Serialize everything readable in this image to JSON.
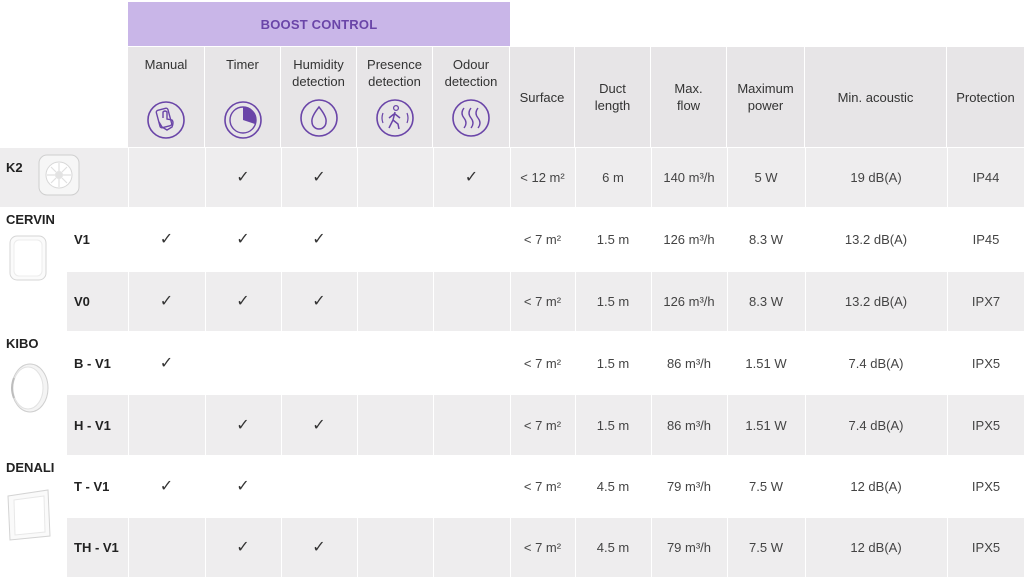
{
  "table": {
    "group_header": "BOOST CONTROL",
    "headers": {
      "manual": "Manual",
      "timer": "Timer",
      "humidity": "Humidity detection",
      "presence": "Presence detection",
      "odour": "Odour detection",
      "surface": "Surface",
      "duct": "Duct length",
      "flow": "Max. flow",
      "power": "Maximum power",
      "acoustic": "Min. acoustic",
      "protection": "Protection"
    },
    "check_mark": "✓",
    "rows": [
      {
        "brand": "K2",
        "variant": "",
        "manual": "",
        "timer": "✓",
        "humidity": "✓",
        "presence": "",
        "odour": "✓",
        "surface": "< 12 m²",
        "duct": "6 m",
        "flow": "140 m³/h",
        "power": "5 W",
        "acoustic": "19 dB(A)",
        "protection": "IP44"
      },
      {
        "brand": "CERVIN",
        "variant": "V1",
        "manual": "✓",
        "timer": "✓",
        "humidity": "✓",
        "presence": "",
        "odour": "",
        "surface": "< 7 m²",
        "duct": "1.5 m",
        "flow": "126 m³/h",
        "power": "8.3 W",
        "acoustic": "13.2 dB(A)",
        "protection": "IP45"
      },
      {
        "brand": "",
        "variant": "V0",
        "manual": "✓",
        "timer": "✓",
        "humidity": "✓",
        "presence": "",
        "odour": "",
        "surface": "< 7 m²",
        "duct": "1.5 m",
        "flow": "126 m³/h",
        "power": "8.3 W",
        "acoustic": "13.2 dB(A)",
        "protection": "IPX7"
      },
      {
        "brand": "KIBO",
        "variant": "B - V1",
        "manual": "✓",
        "timer": "",
        "humidity": "",
        "presence": "",
        "odour": "",
        "surface": "< 7 m²",
        "duct": "1.5 m",
        "flow": "86 m³/h",
        "power": "1.51 W",
        "acoustic": "7.4 dB(A)",
        "protection": "IPX5"
      },
      {
        "brand": "",
        "variant": "H - V1",
        "manual": "",
        "timer": "✓",
        "humidity": "✓",
        "presence": "",
        "odour": "",
        "surface": "< 7 m²",
        "duct": "1.5 m",
        "flow": "86 m³/h",
        "power": "1.51 W",
        "acoustic": "7.4 dB(A)",
        "protection": "IPX5"
      },
      {
        "brand": "DENALI",
        "variant": "T - V1",
        "manual": "✓",
        "timer": "✓",
        "humidity": "",
        "presence": "",
        "odour": "",
        "surface": "< 7 m²",
        "duct": "4.5 m",
        "flow": "79 m³/h",
        "power": "7.5 W",
        "acoustic": "12 dB(A)",
        "protection": "IPX5"
      },
      {
        "brand": "",
        "variant": "TH - V1",
        "manual": "",
        "timer": "✓",
        "humidity": "✓",
        "presence": "",
        "odour": "",
        "surface": "< 7 m²",
        "duct": "4.5 m",
        "flow": "79 m³/h",
        "power": "7.5 W",
        "acoustic": "12 dB(A)",
        "protection": "IPX5"
      }
    ]
  },
  "icons": {
    "manual": "hand-touch-icon",
    "timer": "timer-icon",
    "humidity": "water-drop-icon",
    "presence": "presence-walking-person-icon",
    "odour": "odour-waves-icon"
  },
  "colors": {
    "accent_purple": "#6a45a8",
    "boost_header_bg": "#c9b6e8",
    "header_bg": "#e7e5e7",
    "row_grey": "#eeedee",
    "row_white": "#ffffff"
  }
}
